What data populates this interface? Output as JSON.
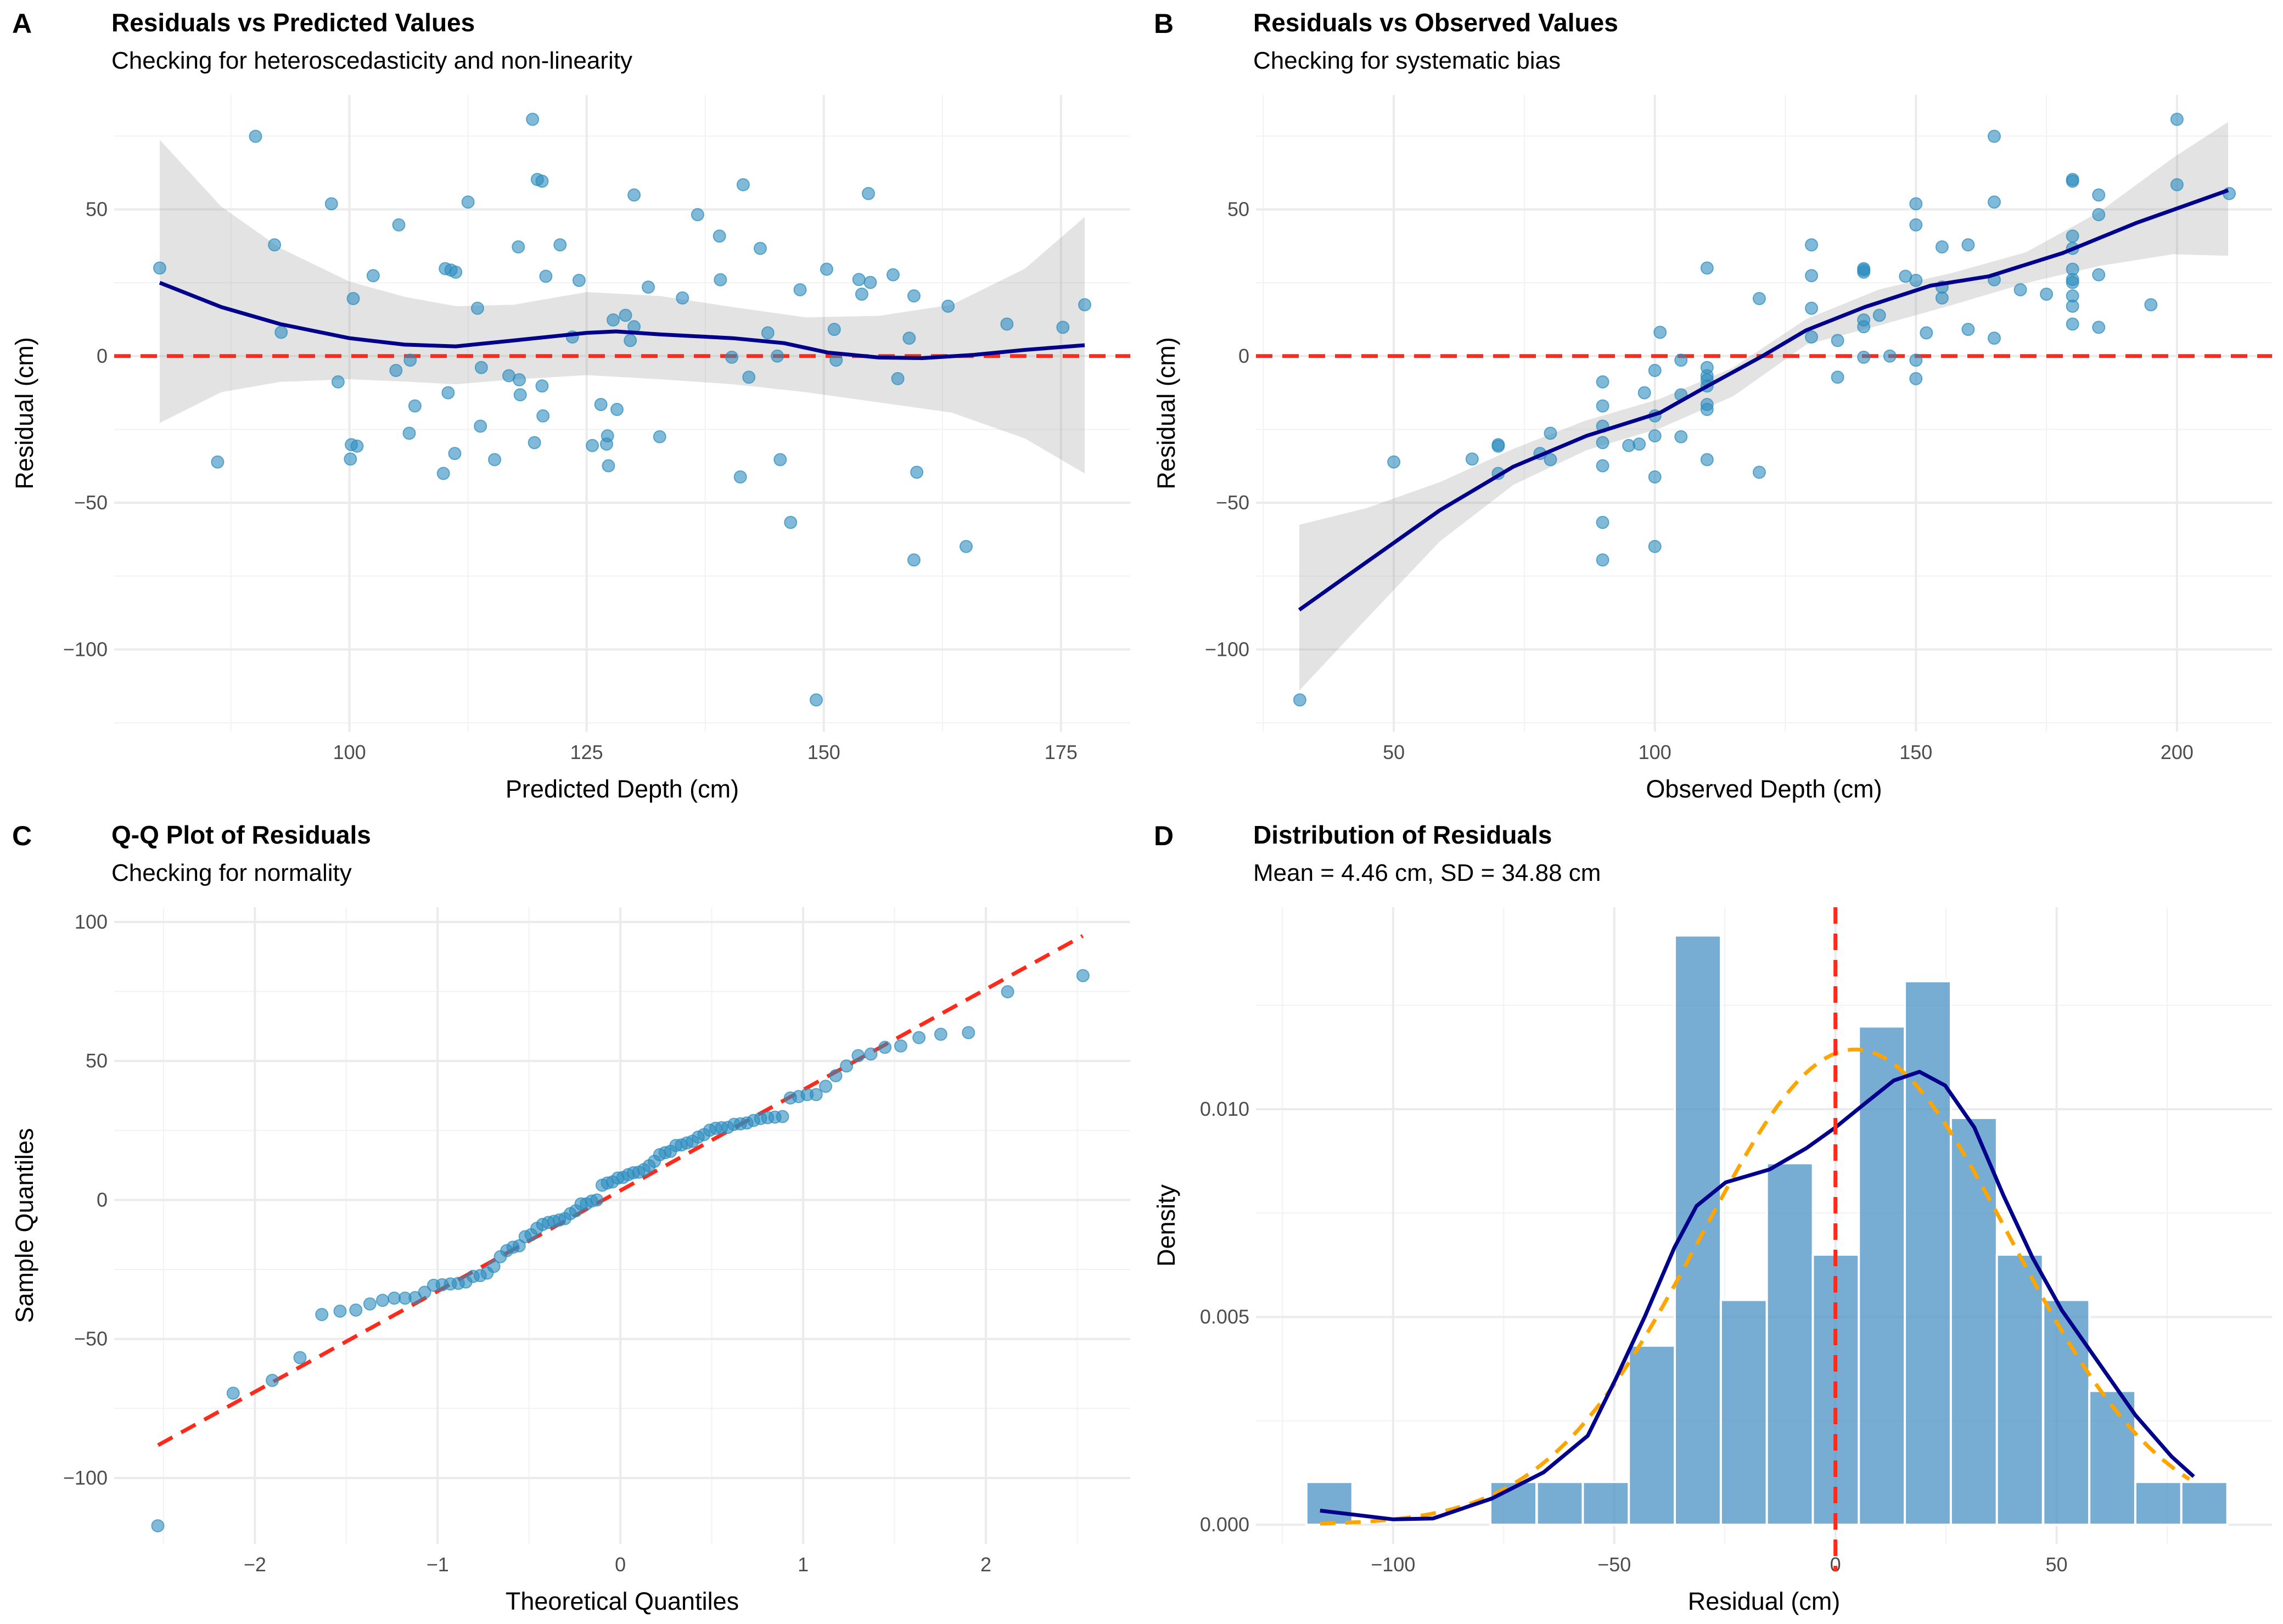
{
  "chart_data": [
    {
      "panel": "A",
      "type": "scatter",
      "title": "Residuals vs Predicted Values",
      "subtitle": "Checking for heteroscedasticity and non-linearity",
      "xlabel": "Predicted Depth (cm)",
      "ylabel": "Residual (cm)",
      "xlim": [
        75.2,
        182.3
      ],
      "ylim": [
        -128,
        89
      ],
      "xticks": [
        100,
        125,
        150,
        175
      ],
      "xtick_labels": [
        "100",
        "125",
        "150",
        "175"
      ],
      "yticks": [
        -100,
        -50,
        0,
        50
      ],
      "ytick_labels": [
        "−100",
        "−50",
        "0",
        "50"
      ],
      "grid": true,
      "reference_line": {
        "y": 0,
        "style": "dashed",
        "color": "#ff2a1a"
      },
      "smooth": {
        "color": "#00008b",
        "x": [
          80,
          86.5,
          92.7,
          100,
          105.8,
          111.2,
          117.3,
          125,
          128.1,
          132.7,
          140.4,
          145.8,
          150.4,
          155.8,
          160.4,
          165.8,
          171.2,
          177.5
        ],
        "y": [
          25,
          16.7,
          10.9,
          6.1,
          3.9,
          3.3,
          5.3,
          7.9,
          8.4,
          7.4,
          6.1,
          4.4,
          1.2,
          -0.5,
          -0.7,
          0.4,
          2.1,
          3.7
        ],
        "band_x": [
          80,
          86.5,
          92.7,
          100,
          105.8,
          111.2,
          117.3,
          125,
          132.7,
          140.4,
          148.1,
          155.8,
          163.5,
          171.2,
          177.5
        ],
        "band_upper": [
          73.7,
          50.9,
          36.8,
          25.4,
          20.2,
          17,
          17.5,
          21.8,
          20.5,
          16.7,
          13.2,
          13.7,
          17.5,
          29.8,
          47.4
        ],
        "band_lower": [
          -22.8,
          -12.3,
          -8.8,
          -7.9,
          -8.7,
          -9.6,
          -8,
          -6.5,
          -7.9,
          -9.6,
          -12.3,
          -15.8,
          -19.3,
          -28.1,
          -40
        ]
      }
    },
    {
      "panel": "B",
      "type": "scatter",
      "title": "Residuals vs Observed Values",
      "subtitle": "Checking for systematic bias",
      "xlabel": "Observed Depth (cm)",
      "ylabel": "Residual (cm)",
      "xlim": [
        23.6,
        218.2
      ],
      "ylim": [
        -128,
        89
      ],
      "xticks": [
        50,
        100,
        150,
        200
      ],
      "xtick_labels": [
        "50",
        "100",
        "150",
        "200"
      ],
      "yticks": [
        -100,
        -50,
        0,
        50
      ],
      "ytick_labels": [
        "−100",
        "−50",
        "0",
        "50"
      ],
      "grid": true,
      "reference_line": {
        "y": 0,
        "style": "dashed",
        "color": "#ff2a1a"
      },
      "smooth": {
        "color": "#00008b",
        "x": [
          31.9,
          44.8,
          58.8,
          72.9,
          86.9,
          101,
          109.4,
          120.6,
          129,
          140.2,
          152.8,
          164,
          178.1,
          192.1,
          209.8
        ],
        "y": [
          -86.5,
          -70.2,
          -52.6,
          -37.7,
          -27.2,
          -19.3,
          -10.9,
          0,
          8.8,
          16.7,
          24,
          27.2,
          35.1,
          45.3,
          56.5
        ],
        "band_x": [
          31.9,
          44.8,
          58.8,
          72.9,
          86.9,
          101,
          115,
          129,
          143.1,
          157.1,
          171.1,
          185.1,
          199.2,
          209.8
        ],
        "band_upper": [
          -57.5,
          -51.8,
          -43,
          -31.6,
          -21.9,
          -14.6,
          -3.9,
          12.6,
          22.8,
          28.4,
          35.4,
          49.1,
          67.5,
          79.8
        ],
        "band_lower": [
          -114,
          -89.5,
          -63.2,
          -43.9,
          -32.1,
          -24.6,
          -13.7,
          3.9,
          10.5,
          17.5,
          24.9,
          30.7,
          34.7,
          34.2
        ]
      }
    },
    {
      "panel": "C",
      "type": "scatter",
      "title": "Q-Q Plot of Residuals",
      "subtitle": "Checking for normality",
      "xlabel": "Theoretical Quantiles",
      "ylabel": "Sample Quantiles",
      "xlim": [
        -2.77,
        2.79
      ],
      "ylim": [
        -123.7,
        105.3
      ],
      "xticks": [
        -2,
        -1,
        0,
        1,
        2
      ],
      "xtick_labels": [
        "−2",
        "−1",
        "0",
        "1",
        "2"
      ],
      "yticks": [
        -100,
        -50,
        0,
        50,
        100
      ],
      "ytick_labels": [
        "−100",
        "−50",
        "0",
        "50",
        "100"
      ],
      "grid": true,
      "qq_line": {
        "x": [
          -2.53,
          2.53
        ],
        "y": [
          -88.2,
          95
        ],
        "style": "dashed",
        "color": "#ff2a1a"
      }
    },
    {
      "panel": "D",
      "type": "bar",
      "title": "Distribution of Residuals",
      "subtitle": "Mean = 4.46 cm, SD = 34.88 cm",
      "xlabel": "Residual (cm)",
      "ylabel": "Density",
      "xlim": [
        -131,
        98.7
      ],
      "ylim": [
        -0.00046,
        0.01486
      ],
      "xticks": [
        -100,
        -50,
        0,
        50
      ],
      "xtick_labels": [
        "−100",
        "−50",
        "0",
        "50"
      ],
      "yticks": [
        0,
        0.005,
        0.01
      ],
      "ytick_labels": [
        "0.000",
        "0.005",
        "0.010"
      ],
      "grid": true,
      "bin_width": 10.42,
      "bin_centers": [
        -114.4,
        -104,
        -93.6,
        -83.2,
        -72.8,
        -62.3,
        -51.9,
        -41.5,
        -31.1,
        -20.7,
        -10.3,
        0.1,
        10.5,
        20.9,
        31.3,
        41.7,
        52.2,
        62.6,
        73,
        83.4
      ],
      "density": [
        0.00103,
        0,
        0,
        0,
        0.00103,
        0.00103,
        0.00103,
        0.00431,
        0.01418,
        0.00541,
        0.0087,
        0.0065,
        0.01199,
        0.01308,
        0.00979,
        0.0065,
        0.00541,
        0.00322,
        0.00103,
        0.00103
      ],
      "bar_color": "#4a90c4",
      "reference_line": {
        "x": 0,
        "style": "dashed",
        "color": "#ff2a1a"
      },
      "kde": {
        "color": "#00008b",
        "x": [
          -116.5,
          -100,
          -91,
          -77.7,
          -66,
          -56,
          -49.6,
          -43,
          -36.4,
          -31.4,
          -24.8,
          -14.9,
          -6.6,
          0,
          6.6,
          13.2,
          19,
          24.8,
          31.4,
          38,
          44.6,
          51.2,
          59.5,
          67.8,
          76,
          81
        ],
        "y": [
          0.00034,
          0.00013,
          0.00015,
          0.00063,
          0.00126,
          0.00214,
          0.00352,
          0.00503,
          0.00667,
          0.00767,
          0.00824,
          0.00855,
          0.00906,
          0.00956,
          0.01013,
          0.01069,
          0.0109,
          0.01057,
          0.00956,
          0.00792,
          0.00642,
          0.00516,
          0.0039,
          0.00264,
          0.00164,
          0.00116
        ]
      },
      "normal_fit": {
        "mean": 4.46,
        "sd": 34.88,
        "x_range": [
          -116.5,
          81
        ],
        "color": "#ffa500",
        "style": "dashed"
      }
    }
  ],
  "points": {
    "columns": [
      "predicted",
      "observed",
      "residual"
    ],
    "color": "#2b8cbe",
    "values": [
      [
        80,
        110,
        30
      ],
      [
        90.1,
        165,
        74.9
      ],
      [
        86.1,
        50,
        -36.1
      ],
      [
        92.1,
        130,
        37.9
      ],
      [
        92.8,
        101,
        8.1
      ],
      [
        98.1,
        150,
        51.9
      ],
      [
        98.8,
        90,
        -8.8
      ],
      [
        100.4,
        120,
        19.6
      ],
      [
        100.2,
        70,
        -30.2
      ],
      [
        100.8,
        70,
        -30.7
      ],
      [
        100.1,
        65,
        -35.1
      ],
      [
        102.5,
        130,
        27.4
      ],
      [
        104.9,
        100,
        -4.9
      ],
      [
        105.2,
        150,
        44.7
      ],
      [
        106.4,
        105,
        -1.4
      ],
      [
        106.3,
        80,
        -26.3
      ],
      [
        106.9,
        90,
        -17
      ],
      [
        109.9,
        70,
        -40
      ],
      [
        110.1,
        140,
        29.8
      ],
      [
        110.7,
        140,
        29.3
      ],
      [
        111.2,
        140,
        28.6
      ],
      [
        110.4,
        98,
        -12.5
      ],
      [
        111.1,
        78,
        -33.2
      ],
      [
        112.5,
        165,
        52.5
      ],
      [
        113.5,
        130,
        16.3
      ],
      [
        113.9,
        110,
        -3.9
      ],
      [
        113.8,
        90,
        -23.9
      ],
      [
        115.3,
        80,
        -35.3
      ],
      [
        116.8,
        110,
        -6.7
      ],
      [
        117.8,
        155,
        37.2
      ],
      [
        117.9,
        110,
        -8.1
      ],
      [
        118,
        105,
        -13.2
      ],
      [
        119.3,
        200,
        80.7
      ],
      [
        119.5,
        90,
        -29.5
      ],
      [
        119.8,
        180,
        60.2
      ],
      [
        120.3,
        180,
        59.6
      ],
      [
        120.3,
        110,
        -10.2
      ],
      [
        120.4,
        100,
        -20.4
      ],
      [
        120.7,
        148,
        27.2
      ],
      [
        122.2,
        160,
        37.9
      ],
      [
        123.5,
        130,
        6.5
      ],
      [
        124.2,
        150,
        25.8
      ],
      [
        125.6,
        95,
        -30.5
      ],
      [
        126.5,
        110,
        -16.5
      ],
      [
        127.1,
        97,
        -30
      ],
      [
        127.2,
        100,
        -27.2
      ],
      [
        127.3,
        90,
        -37.4
      ],
      [
        127.8,
        140,
        12.3
      ],
      [
        128.2,
        110,
        -18.2
      ],
      [
        129.1,
        143,
        13.9
      ],
      [
        129.6,
        135,
        5.3
      ],
      [
        130,
        185,
        54.9
      ],
      [
        130,
        140,
        10
      ],
      [
        131.5,
        155,
        23.5
      ],
      [
        132.7,
        105,
        -27.5
      ],
      [
        135.1,
        155,
        19.8
      ],
      [
        136.7,
        185,
        48.2
      ],
      [
        139,
        180,
        40.9
      ],
      [
        139.1,
        165,
        26
      ],
      [
        140.3,
        140,
        -0.4
      ],
      [
        141.2,
        100,
        -41.2
      ],
      [
        141.5,
        200,
        58.4
      ],
      [
        142.1,
        135,
        -7.2
      ],
      [
        143.3,
        180,
        36.7
      ],
      [
        144.1,
        152,
        7.9
      ],
      [
        145.1,
        145,
        0
      ],
      [
        145.4,
        110,
        -35.3
      ],
      [
        146.5,
        90,
        -56.7
      ],
      [
        147.5,
        170,
        22.6
      ],
      [
        149.2,
        32,
        -117.2
      ],
      [
        150.3,
        180,
        29.6
      ],
      [
        151.1,
        160,
        9.1
      ],
      [
        151.3,
        150,
        -1.4
      ],
      [
        153.7,
        180,
        26.1
      ],
      [
        154,
        175,
        21.1
      ],
      [
        154.7,
        210,
        55.4
      ],
      [
        154.9,
        180,
        25.1
      ],
      [
        157.3,
        185,
        27.7
      ],
      [
        157.8,
        150,
        -7.7
      ],
      [
        159,
        165,
        6.1
      ],
      [
        159.5,
        180,
        20.5
      ],
      [
        159.5,
        90,
        -69.5
      ],
      [
        159.8,
        120,
        -39.6
      ],
      [
        163.1,
        180,
        17
      ],
      [
        165,
        100,
        -64.9
      ],
      [
        169.3,
        180,
        10.9
      ],
      [
        175.2,
        185,
        9.8
      ],
      [
        177.5,
        195,
        17.5
      ]
    ]
  }
}
